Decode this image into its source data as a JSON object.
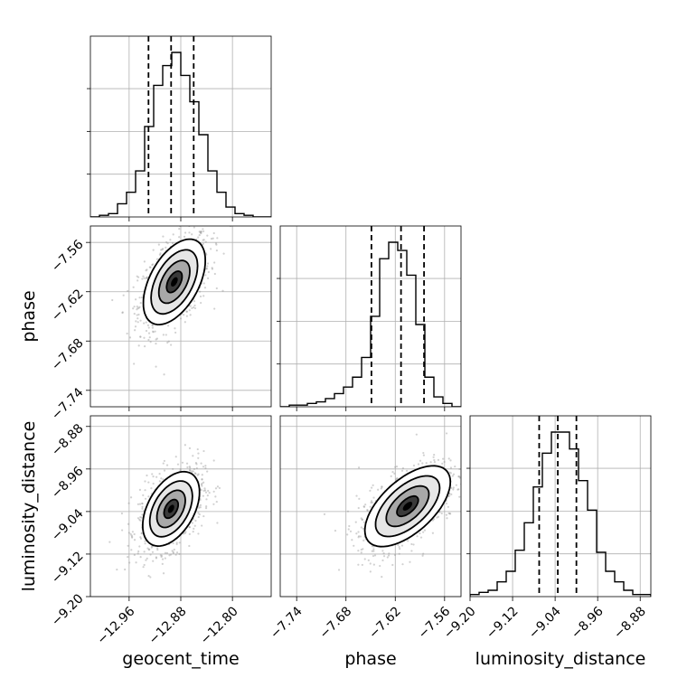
{
  "chart_data": {
    "type": "corner",
    "parameters": [
      "geocent_time",
      "phase",
      "luminosity_distance"
    ],
    "colors": {
      "ink": "#000000",
      "grid": "#b0b0b0",
      "samples": "#9a9a9a"
    },
    "grid": true,
    "ranges": {
      "geocent_time": [
        -13.02,
        -12.74
      ],
      "phase": [
        -7.76,
        -7.54
      ],
      "luminosity_distance": [
        -9.2,
        -8.86
      ]
    },
    "ticks": {
      "geocent_time": {
        "values": [
          -12.96,
          -12.88,
          -12.8
        ],
        "labels": [
          "−12.96",
          "−12.88",
          "−12.80"
        ]
      },
      "phase": {
        "values": [
          -7.74,
          -7.68,
          -7.62,
          -7.56
        ],
        "labels": [
          "−7.74",
          "−7.68",
          "−7.62",
          "−7.56"
        ]
      },
      "luminosity_distance": {
        "values": [
          -9.2,
          -9.12,
          -9.04,
          -8.96,
          -8.88
        ],
        "labels": [
          "−9.20",
          "−9.12",
          "−9.04",
          "−8.96",
          "−8.88"
        ]
      }
    },
    "marginals": [
      {
        "parameter": "geocent_time",
        "bin_edges": [
          -13.02,
          -13.006,
          -12.992,
          -12.978,
          -12.964,
          -12.95,
          -12.936,
          -12.922,
          -12.908,
          -12.894,
          -12.88,
          -12.866,
          -12.852,
          -12.838,
          -12.824,
          -12.81,
          -12.796,
          -12.782,
          -12.768,
          -12.754,
          -12.74
        ],
        "counts": [
          0,
          1,
          2,
          8,
          15,
          28,
          55,
          80,
          92,
          100,
          86,
          70,
          50,
          28,
          15,
          6,
          2,
          1,
          0,
          0
        ],
        "quantiles": [
          -12.93,
          -12.895,
          -12.86
        ]
      },
      {
        "parameter": "phase",
        "bin_edges": [
          -7.76,
          -7.749,
          -7.738,
          -7.727,
          -7.716,
          -7.705,
          -7.694,
          -7.683,
          -7.672,
          -7.661,
          -7.65,
          -7.639,
          -7.628,
          -7.617,
          -7.606,
          -7.595,
          -7.584,
          -7.573,
          -7.562,
          -7.551,
          -7.54
        ],
        "counts": [
          0,
          1,
          1,
          2,
          3,
          5,
          8,
          12,
          18,
          30,
          55,
          90,
          100,
          95,
          80,
          50,
          18,
          6,
          2,
          0
        ],
        "quantiles": [
          -7.649,
          -7.613,
          -7.585
        ]
      },
      {
        "parameter": "luminosity_distance",
        "bin_edges": [
          -9.2,
          -9.183,
          -9.166,
          -9.149,
          -9.132,
          -9.115,
          -9.098,
          -9.081,
          -9.064,
          -9.047,
          -9.03,
          -9.013,
          -8.996,
          -8.979,
          -8.962,
          -8.945,
          -8.928,
          -8.911,
          -8.894,
          -8.877,
          -8.86
        ],
        "counts": [
          1,
          2,
          3,
          7,
          12,
          22,
          35,
          52,
          68,
          78,
          78,
          70,
          55,
          41,
          21,
          12,
          7,
          3,
          1,
          1
        ],
        "quantiles": [
          -9.07,
          -9.035,
          -9.0
        ]
      }
    ],
    "joint": [
      {
        "x": "geocent_time",
        "y": "phase",
        "center": [
          -12.89,
          -7.608
        ],
        "sigma": [
          0.024,
          0.026
        ],
        "correlation": 0.5,
        "contour_levels_sigma": [
          0.5,
          1.0,
          1.5,
          2.0
        ]
      },
      {
        "x": "geocent_time",
        "y": "luminosity_distance",
        "center": [
          -12.895,
          -9.035
        ],
        "sigma": [
          0.022,
          0.035
        ],
        "correlation": 0.45,
        "contour_levels_sigma": [
          0.5,
          1.0,
          1.5,
          2.0
        ]
      },
      {
        "x": "phase",
        "y": "luminosity_distance",
        "center": [
          -7.605,
          -9.03
        ],
        "sigma": [
          0.026,
          0.038
        ],
        "correlation": 0.6,
        "contour_levels_sigma": [
          0.5,
          1.0,
          1.5,
          2.0
        ]
      }
    ]
  }
}
